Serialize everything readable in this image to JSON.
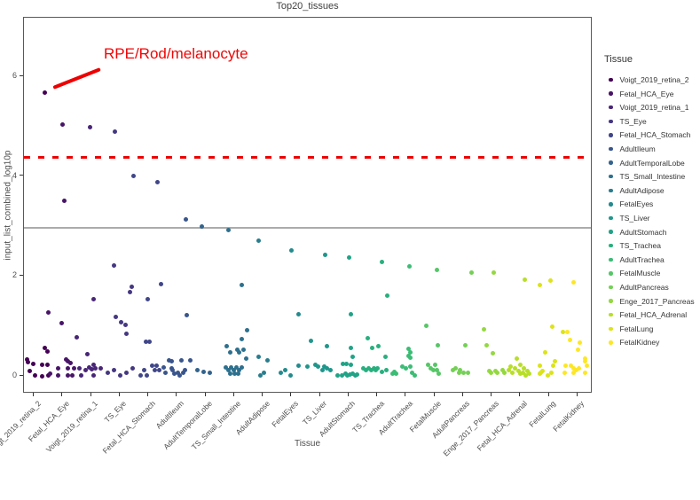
{
  "chart_data": {
    "type": "scatter",
    "title": "Top20_tissues",
    "xlabel": "Tissue",
    "ylabel": "input_list_combined_log10p",
    "legend_title": "Tissue",
    "legend_position": "right",
    "grid": false,
    "y_ticks": [
      0,
      2,
      4,
      6
    ],
    "ylim": [
      -0.35,
      7.0
    ],
    "thresholds": {
      "red_dashed_y": 4.37,
      "gray_solid_y": 2.95
    },
    "threshold_colors": {
      "red_dashed": "#ee0000",
      "gray_solid": "#ababab"
    },
    "annotation": {
      "text": "RPE/Rod/melanocyte",
      "color": "#f00505",
      "target_tissue": "Voigt_2019_retina_2",
      "target_value": 5.65
    },
    "tissues": [
      {
        "name": "Voigt_2019_retina_2",
        "color": "#440154",
        "points": [
          [
            12.5,
            5.65
          ],
          [
            13,
            0.54
          ],
          [
            15.5,
            0.47
          ],
          [
            -7,
            0.31
          ],
          [
            -6,
            0.25
          ],
          [
            0,
            0.23
          ],
          [
            9.5,
            0.2
          ],
          [
            16,
            0.2
          ],
          [
            -4,
            0.08
          ],
          [
            2,
            0.0
          ],
          [
            9.5,
            -0.02
          ],
          [
            17,
            0.0
          ]
        ]
      },
      {
        "name": "Fetal_HCA_Eye",
        "color": "#481467",
        "points": [
          [
            1,
            5.01
          ],
          [
            3,
            3.49
          ],
          [
            -15,
            1.25
          ],
          [
            0,
            1.04
          ],
          [
            5,
            0.31
          ],
          [
            7,
            0.28
          ],
          [
            10,
            0.24
          ],
          [
            -4,
            0.14
          ],
          [
            7,
            0.14
          ],
          [
            14,
            0.14
          ],
          [
            -13,
            0.03
          ],
          [
            -4,
            0.0
          ],
          [
            7,
            0.0
          ],
          [
            12,
            0.0
          ]
        ]
      },
      {
        "name": "Voigt_2019_retina_1",
        "color": "#482576",
        "points": [
          [
            -1,
            4.97
          ],
          [
            3,
            1.52
          ],
          [
            -16,
            0.75
          ],
          [
            -4,
            0.41
          ],
          [
            3,
            0.2
          ],
          [
            -13,
            0.14
          ],
          [
            -11,
            0.0
          ],
          [
            -6,
            0.1
          ],
          [
            -2,
            0.15
          ],
          [
            1,
            0.12
          ],
          [
            3,
            0.0
          ],
          [
            5,
            0.14
          ],
          [
            11,
            0.14
          ]
        ]
      },
      {
        "name": "TS_Eye",
        "color": "#453781",
        "points": [
          [
            -5,
            4.87
          ],
          [
            -6,
            2.19
          ],
          [
            14,
            1.77
          ],
          [
            12,
            1.66
          ],
          [
            -4,
            1.16
          ],
          [
            2,
            1.06
          ],
          [
            7,
            1.0
          ],
          [
            8,
            0.83
          ],
          [
            -13,
            0.05
          ],
          [
            -6,
            0.09
          ],
          [
            1,
            0.0
          ],
          [
            8,
            0.04
          ],
          [
            15,
            0.14
          ]
        ]
      },
      {
        "name": "Fetal_HCA_Stomach",
        "color": "#404688",
        "points": [
          [
            -16,
            3.99
          ],
          [
            11,
            3.87
          ],
          [
            15,
            1.82
          ],
          [
            0,
            1.51
          ],
          [
            -2,
            0.66
          ],
          [
            2,
            0.66
          ],
          [
            -8,
            0.0
          ],
          [
            -4,
            0.09
          ],
          [
            -1,
            0.0
          ],
          [
            5,
            0.18
          ],
          [
            8,
            0.09
          ],
          [
            10,
            0.18
          ],
          [
            13,
            0.09
          ]
        ]
      },
      {
        "name": "AdultIleum",
        "color": "#39558C",
        "points": [
          [
            11,
            3.12
          ],
          [
            12,
            1.2
          ],
          [
            16,
            0.3
          ],
          [
            -8,
            0.29
          ],
          [
            -5,
            0.27
          ],
          [
            6,
            0.29
          ],
          [
            -5,
            0.14
          ],
          [
            -14,
            0.15
          ],
          [
            -4,
            0.1
          ],
          [
            -2,
            0.03
          ],
          [
            2,
            0.05
          ],
          [
            4,
            0.0
          ],
          [
            8,
            0.05
          ],
          [
            10,
            0.09
          ],
          [
            -12,
            0.05
          ]
        ]
      },
      {
        "name": "AdultTemporalLobe",
        "color": "#33638D",
        "points": [
          [
            -4,
            2.97
          ],
          [
            -9,
            0.09
          ],
          [
            -2,
            0.07
          ],
          [
            5,
            0.05
          ]
        ]
      },
      {
        "name": "TS_Small_Intestine",
        "color": "#2D708E",
        "points": [
          [
            -6,
            2.9
          ],
          [
            9,
            1.81
          ],
          [
            15,
            0.89
          ],
          [
            9,
            0.72
          ],
          [
            -8,
            0.57
          ],
          [
            11,
            0.51
          ],
          [
            4,
            0.5
          ],
          [
            6,
            0.46
          ],
          [
            -4,
            0.45
          ],
          [
            14,
            0.32
          ],
          [
            -9,
            0.15
          ],
          [
            -6,
            0.1
          ],
          [
            -3,
            0.15
          ],
          [
            0,
            0.1
          ],
          [
            3,
            0.15
          ],
          [
            6,
            0.1
          ],
          [
            9,
            0.15
          ],
          [
            -4,
            0.03
          ],
          [
            1,
            0.02
          ],
          [
            5,
            0.03
          ]
        ]
      },
      {
        "name": "AdultAdipose",
        "color": "#287D8E",
        "points": [
          [
            -4,
            2.69
          ],
          [
            -4,
            0.36
          ],
          [
            6,
            0.3
          ],
          [
            2,
            0.04
          ],
          [
            -2,
            0.0
          ]
        ]
      },
      {
        "name": "FetalEyes",
        "color": "#238A8D",
        "points": [
          [
            1,
            2.5
          ],
          [
            9,
            1.22
          ],
          [
            9,
            0.19
          ],
          [
            0,
            0.0
          ],
          [
            -11,
            0.05
          ],
          [
            -6,
            0.1
          ]
        ]
      },
      {
        "name": "TS_Liver",
        "color": "#1F968B",
        "points": [
          [
            6,
            2.41
          ],
          [
            -10,
            0.69
          ],
          [
            8,
            0.57
          ],
          [
            -14,
            0.17
          ],
          [
            -5,
            0.21
          ],
          [
            -2,
            0.17
          ],
          [
            5,
            0.17
          ],
          [
            3,
            0.09
          ],
          [
            8,
            0.13
          ],
          [
            12,
            0.09
          ]
        ]
      },
      {
        "name": "AdultStomach",
        "color": "#20A386",
        "points": [
          [
            1,
            2.35
          ],
          [
            3,
            1.21
          ],
          [
            3,
            0.54
          ],
          [
            5,
            0.37
          ],
          [
            -6,
            0.23
          ],
          [
            -2,
            0.23
          ],
          [
            3,
            0.21
          ],
          [
            -12,
            0.0
          ],
          [
            -7,
            -0.01
          ],
          [
            -3,
            0.02
          ],
          [
            -1,
            -0.01
          ],
          [
            2,
            0.01
          ],
          [
            5,
            0.02
          ],
          [
            8,
            -0.01
          ],
          [
            10,
            0.01
          ]
        ]
      },
      {
        "name": "TS_Trachea",
        "color": "#29AF7F",
        "points": [
          [
            6,
            2.27
          ],
          [
            12,
            1.59
          ],
          [
            -10,
            0.73
          ],
          [
            2,
            0.57
          ],
          [
            -5,
            0.54
          ],
          [
            10,
            0.36
          ],
          [
            -15,
            0.14
          ],
          [
            -12,
            0.09
          ],
          [
            -9,
            0.14
          ],
          [
            -6,
            0.09
          ],
          [
            -3,
            0.14
          ],
          [
            -1,
            0.09
          ],
          [
            1,
            0.14
          ],
          [
            6,
            0.07
          ],
          [
            11,
            0.09
          ]
        ]
      },
      {
        "name": "AdultTrachea",
        "color": "#3CBC75",
        "points": [
          [
            5,
            2.17
          ],
          [
            4,
            0.52
          ],
          [
            6,
            0.46
          ],
          [
            4,
            0.39
          ],
          [
            6,
            0.35
          ],
          [
            -3,
            0.17
          ],
          [
            1,
            0.13
          ],
          [
            6,
            0.17
          ],
          [
            8,
            0.05
          ],
          [
            11,
            0.0
          ],
          [
            -14,
            0.03
          ],
          [
            -12,
            0.07
          ],
          [
            -10,
            0.03
          ]
        ]
      },
      {
        "name": "FetalMuscle",
        "color": "#56C667",
        "points": [
          [
            3,
            2.11
          ],
          [
            -9,
            0.99
          ],
          [
            4,
            0.6
          ],
          [
            -7,
            0.21
          ],
          [
            -4,
            0.14
          ],
          [
            1,
            0.21
          ],
          [
            3,
            0.1
          ],
          [
            -1,
            0.1
          ],
          [
            5,
            0.03
          ]
        ]
      },
      {
        "name": "AdultPancreas",
        "color": "#74D055",
        "points": [
          [
            10,
            2.06
          ],
          [
            3,
            0.6
          ],
          [
            -8,
            0.13
          ],
          [
            -3,
            0.09
          ],
          [
            -11,
            0.09
          ],
          [
            -4,
            0.05
          ],
          [
            1,
            0.05
          ],
          [
            6,
            0.05
          ]
        ]
      },
      {
        "name": "Enge_2017_Pancreas",
        "color": "#94D840",
        "points": [
          [
            3,
            2.06
          ],
          [
            -8,
            0.91
          ],
          [
            -5,
            0.59
          ],
          [
            2,
            0.43
          ],
          [
            -2,
            0.08
          ],
          [
            0,
            0.04
          ],
          [
            5,
            0.08
          ],
          [
            7,
            0.04
          ],
          [
            13,
            0.09
          ],
          [
            15,
            0.05
          ]
        ]
      },
      {
        "name": "Fetal_HCA_Adrenal",
        "color": "#B8DE29",
        "points": [
          [
            6,
            1.91
          ],
          [
            -3,
            0.33
          ],
          [
            1,
            0.2
          ],
          [
            5,
            0.14
          ],
          [
            -10,
            0.17
          ],
          [
            -12,
            0.09
          ],
          [
            -8,
            0.05
          ],
          [
            -5,
            0.13
          ],
          [
            -1,
            0.08
          ],
          [
            1,
            0.02
          ],
          [
            4,
            0.05
          ],
          [
            7,
            0.0
          ],
          [
            9,
            0.08
          ],
          [
            11,
            0.02
          ]
        ]
      },
      {
        "name": "FetalLung",
        "color": "#DCE318",
        "points": [
          [
            2,
            1.9
          ],
          [
            -10,
            1.81
          ],
          [
            4,
            0.96
          ],
          [
            16,
            0.86
          ],
          [
            -4,
            0.46
          ],
          [
            7,
            0.27
          ],
          [
            -10,
            0.19
          ],
          [
            5,
            0.19
          ],
          [
            -7,
            0.08
          ],
          [
            -9,
            0.04
          ],
          [
            -10,
            0.03
          ],
          [
            3,
            0.05
          ],
          [
            -1,
            0.0
          ]
        ]
      },
      {
        "name": "FetalKidney",
        "color": "#FDE725",
        "points": [
          [
            -4,
            1.86
          ],
          [
            -11,
            0.86
          ],
          [
            -8,
            0.7
          ],
          [
            3,
            0.64
          ],
          [
            1,
            0.51
          ],
          [
            9,
            0.32
          ],
          [
            9,
            0.27
          ],
          [
            -7,
            0.19
          ],
          [
            11,
            0.19
          ],
          [
            -13,
            0.18
          ],
          [
            -4,
            0.14
          ],
          [
            2,
            0.13
          ],
          [
            -1,
            0.09
          ],
          [
            -14,
            0.05
          ],
          [
            -4,
            0.05
          ],
          [
            9,
            0.05
          ]
        ]
      }
    ]
  }
}
